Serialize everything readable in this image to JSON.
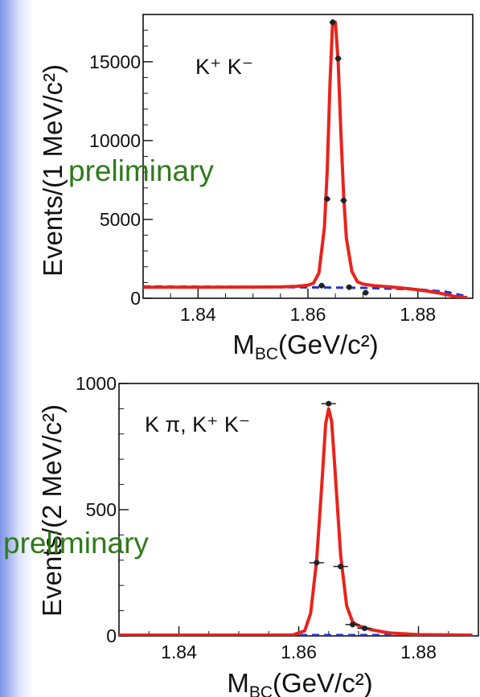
{
  "chart_data": [
    {
      "type": "line",
      "label": "K⁺ K⁻",
      "watermark": "preliminary",
      "ylabel": "Events/(1 MeV/c²)",
      "xlabel": "M_BC(GeV/c²)",
      "xlabel_main": "M",
      "xlabel_sub": "BC",
      "xlabel_rest": "(GeV/c²)",
      "xlim": [
        1.83,
        1.89
      ],
      "ylim": [
        0,
        18000
      ],
      "xticks": [
        1.84,
        1.86,
        1.88
      ],
      "xtick_labels": [
        "1.84",
        "1.86",
        "1.88"
      ],
      "yticks": [
        0,
        5000,
        10000,
        15000
      ],
      "ytick_labels": [
        "0",
        "5000",
        "10000",
        "15000"
      ],
      "series": [
        {
          "kind": "points",
          "x": [
            1.8625,
            1.8635,
            1.8645,
            1.8655,
            1.8665,
            1.8675,
            1.8705
          ],
          "y": [
            800,
            6300,
            17500,
            15200,
            6200,
            700,
            350
          ]
        },
        {
          "kind": "fit",
          "color": "#e8231c",
          "x": [
            1.83,
            1.84,
            1.85,
            1.855,
            1.858,
            1.86,
            1.861,
            1.862,
            1.863,
            1.8635,
            1.864,
            1.8645,
            1.865,
            1.8655,
            1.866,
            1.8665,
            1.867,
            1.868,
            1.869,
            1.87,
            1.872,
            1.875,
            1.878,
            1.88,
            1.882,
            1.884,
            1.8865,
            1.889
          ],
          "y": [
            700,
            700,
            710,
            720,
            760,
            830,
            950,
            1600,
            4500,
            8000,
            13500,
            17600,
            17500,
            15000,
            10500,
            6500,
            3800,
            1700,
            1050,
            900,
            800,
            720,
            620,
            540,
            440,
            320,
            130,
            40
          ]
        },
        {
          "kind": "background",
          "color": "#2233cc",
          "x": [
            1.83,
            1.85,
            1.87,
            1.88,
            1.885,
            1.8885,
            1.889
          ],
          "y": [
            750,
            720,
            660,
            560,
            420,
            150,
            40
          ]
        }
      ]
    },
    {
      "type": "line",
      "label": "K π, K⁺ K⁻",
      "watermark": "preliminary",
      "ylabel": "Events/(2 MeV/c²)",
      "xlabel": "M_BC(GeV/c²)",
      "xlabel_main": "M",
      "xlabel_sub": "BC",
      "xlabel_rest": "(GeV/c²)",
      "xlim": [
        1.83,
        1.89
      ],
      "ylim": [
        0,
        1000
      ],
      "xticks": [
        1.84,
        1.86,
        1.88
      ],
      "xtick_labels": [
        "1.84",
        "1.86",
        "1.88"
      ],
      "yticks": [
        0,
        500,
        1000
      ],
      "ytick_labels": [
        "0",
        "500",
        "1000"
      ],
      "series": [
        {
          "kind": "points",
          "x": [
            1.863,
            1.865,
            1.867,
            1.869,
            1.871
          ],
          "y": [
            290,
            920,
            275,
            45,
            30
          ]
        },
        {
          "kind": "fit",
          "color": "#e8231c",
          "x": [
            1.83,
            1.855,
            1.859,
            1.861,
            1.862,
            1.863,
            1.864,
            1.8645,
            1.865,
            1.8655,
            1.866,
            1.867,
            1.868,
            1.869,
            1.87,
            1.872,
            1.875,
            1.88,
            1.889
          ],
          "y": [
            3,
            3,
            4,
            20,
            90,
            300,
            650,
            840,
            900,
            850,
            680,
            320,
            120,
            55,
            40,
            25,
            12,
            5,
            3
          ]
        },
        {
          "kind": "background",
          "color": "#2233cc",
          "x": [
            1.83,
            1.889
          ],
          "y": [
            3,
            3
          ]
        }
      ]
    }
  ]
}
